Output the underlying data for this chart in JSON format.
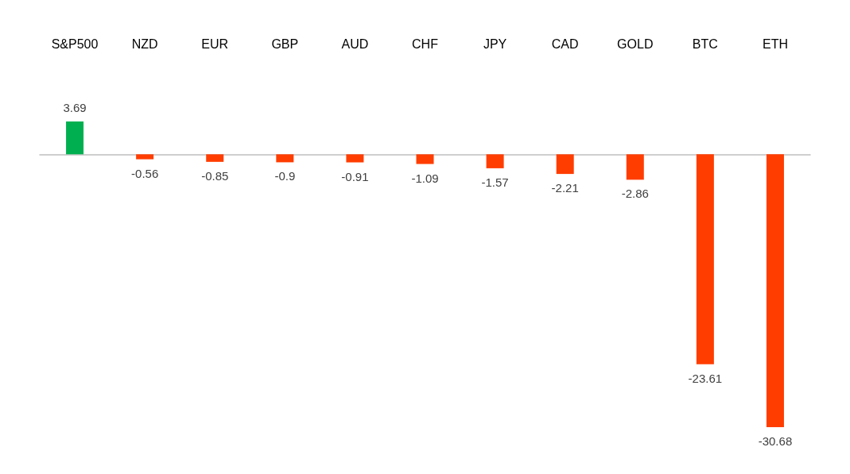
{
  "chart_data": {
    "type": "bar",
    "categories": [
      "S&P500",
      "NZD",
      "EUR",
      "GBP",
      "AUD",
      "CHF",
      "JPY",
      "CAD",
      "GOLD",
      "BTC",
      "ETH"
    ],
    "values": [
      3.69,
      -0.56,
      -0.85,
      -0.9,
      -0.91,
      -1.09,
      -1.57,
      -2.21,
      -2.86,
      -23.61,
      -30.68
    ],
    "colors": [
      "#00b050",
      "#ff3d00",
      "#ff3d00",
      "#ff3d00",
      "#ff3d00",
      "#ff3d00",
      "#ff3d00",
      "#ff3d00",
      "#ff3d00",
      "#ff3d00",
      "#ff3d00"
    ],
    "data_labels": true
  }
}
